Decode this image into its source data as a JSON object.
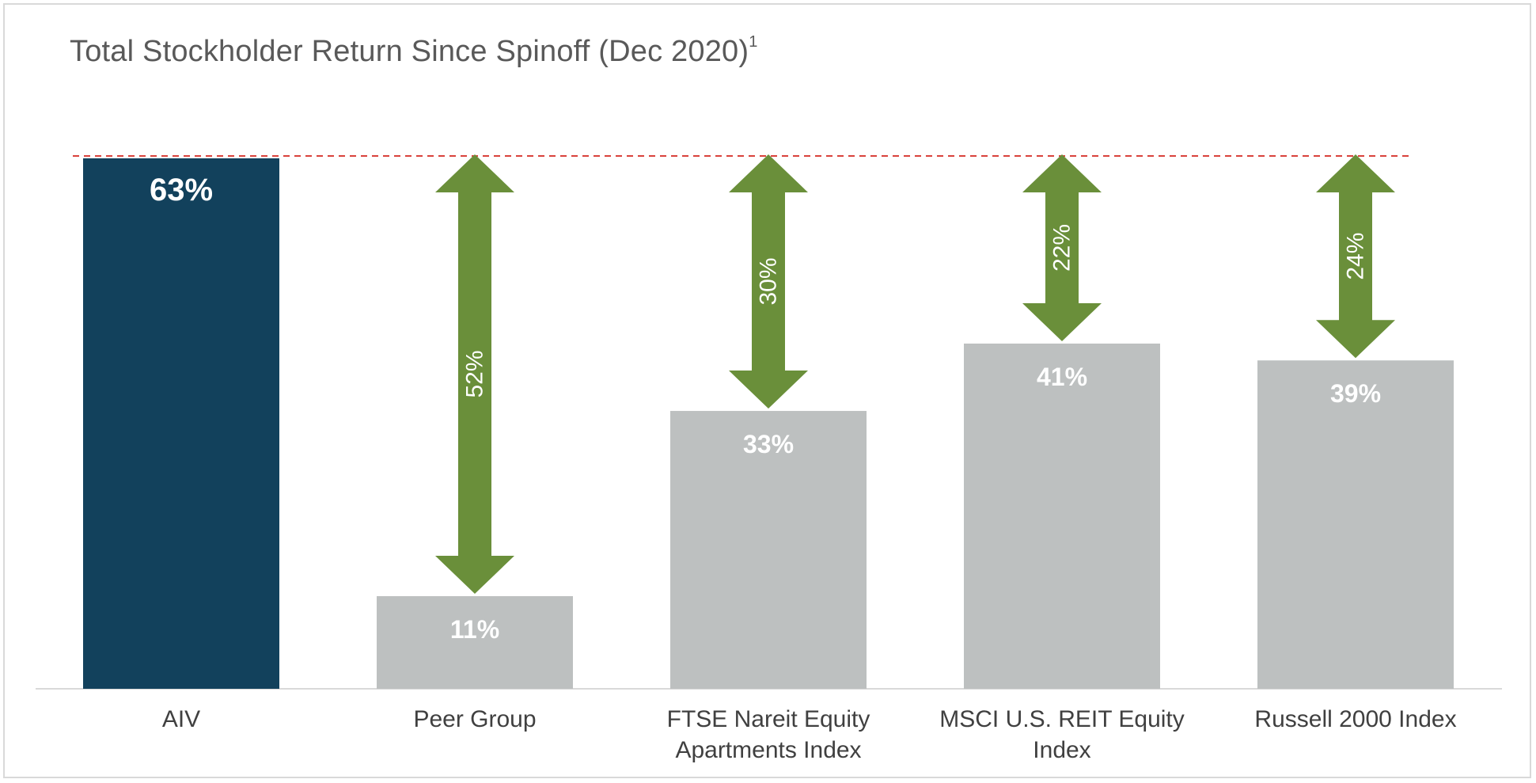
{
  "chart_data": {
    "type": "bar",
    "title": "Total Stockholder Return  Since Spinoff (Dec 2020)",
    "title_footnote": "1",
    "categories": [
      [
        "AIV"
      ],
      [
        "Peer Group"
      ],
      [
        "FTSE Nareit Equity",
        "Apartments Index"
      ],
      [
        "MSCI U.S. REIT Equity",
        "Index"
      ],
      [
        "Russell 2000 Index"
      ]
    ],
    "values": [
      63,
      11,
      33,
      41,
      39
    ],
    "value_labels": [
      "63%",
      "11%",
      "33%",
      "41%",
      "39%"
    ],
    "highlight_index": 0,
    "reference_value": 63,
    "gaps": [
      {
        "category_index": 1,
        "value": 52,
        "label": "52%"
      },
      {
        "category_index": 2,
        "value": 30,
        "label": "30%"
      },
      {
        "category_index": 3,
        "value": 22,
        "label": "22%"
      },
      {
        "category_index": 4,
        "value": 24,
        "label": "24%"
      }
    ],
    "ylim": [
      0,
      63
    ],
    "grid": false,
    "colors": {
      "highlight_bar": "#12415c",
      "bar": "#bdc0c0",
      "arrow": "#6a8f3a",
      "reference_line": "#d9423c",
      "baseline": "#d9d9d9"
    }
  }
}
